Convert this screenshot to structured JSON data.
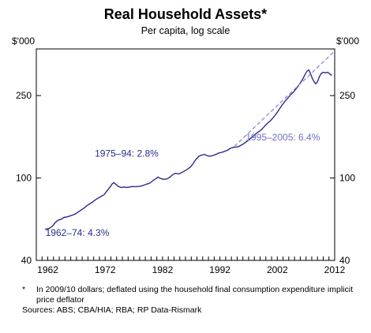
{
  "chart_data": {
    "type": "line",
    "title": "Real Household Assets*",
    "subtitle": "Per capita, log scale",
    "y_unit_left": "$'000",
    "y_unit_right": "$'000",
    "y_scale": "log",
    "ylim": [
      40,
      420
    ],
    "yticks": [
      40,
      100,
      250
    ],
    "ytick_labels": [
      "40",
      "100",
      "250"
    ],
    "xlim": [
      1960,
      2012
    ],
    "xticks": [
      1962,
      1972,
      1982,
      1992,
      2002,
      2012
    ],
    "xtick_labels": [
      "1962",
      "1972",
      "1982",
      "1992",
      "2002",
      "2012"
    ],
    "grid": false,
    "series": [
      {
        "color": "#2b2b8c",
        "style": "solid",
        "points": [
          [
            1961.5,
            56.5
          ],
          [
            1962.2,
            57
          ],
          [
            1962.8,
            58.5
          ],
          [
            1963.3,
            61
          ],
          [
            1963.8,
            62.5
          ],
          [
            1964.3,
            63.2
          ],
          [
            1964.8,
            64.5
          ],
          [
            1965.3,
            64.8
          ],
          [
            1965.8,
            65.5
          ],
          [
            1966.3,
            66.2
          ],
          [
            1966.8,
            67
          ],
          [
            1967.3,
            68.5
          ],
          [
            1967.8,
            70
          ],
          [
            1968.3,
            71.5
          ],
          [
            1968.8,
            73.5
          ],
          [
            1969.3,
            75
          ],
          [
            1969.8,
            76.5
          ],
          [
            1970.3,
            78.5
          ],
          [
            1970.8,
            80
          ],
          [
            1971.3,
            81.5
          ],
          [
            1971.8,
            83
          ],
          [
            1972.3,
            86.5
          ],
          [
            1972.8,
            90
          ],
          [
            1973.2,
            93.5
          ],
          [
            1973.5,
            95
          ],
          [
            1973.8,
            93.5
          ],
          [
            1974.3,
            91
          ],
          [
            1974.8,
            90
          ],
          [
            1975.3,
            90.5
          ],
          [
            1975.8,
            90
          ],
          [
            1976.3,
            90.5
          ],
          [
            1976.8,
            91
          ],
          [
            1977.3,
            90.8
          ],
          [
            1977.8,
            91
          ],
          [
            1978.3,
            91.5
          ],
          [
            1978.8,
            92.5
          ],
          [
            1979.3,
            93.5
          ],
          [
            1979.8,
            94.5
          ],
          [
            1980.3,
            97
          ],
          [
            1980.8,
            99
          ],
          [
            1981.2,
            101
          ],
          [
            1981.6,
            99.5
          ],
          [
            1982.2,
            98.5
          ],
          [
            1982.8,
            99
          ],
          [
            1983.3,
            101
          ],
          [
            1983.8,
            104
          ],
          [
            1984.3,
            105.5
          ],
          [
            1984.8,
            104.5
          ],
          [
            1985.3,
            106
          ],
          [
            1985.8,
            108
          ],
          [
            1986.3,
            110
          ],
          [
            1986.8,
            112.5
          ],
          [
            1987.3,
            117
          ],
          [
            1987.8,
            123
          ],
          [
            1988.3,
            127
          ],
          [
            1988.8,
            129
          ],
          [
            1989.3,
            130
          ],
          [
            1989.8,
            128
          ],
          [
            1990.3,
            127.5
          ],
          [
            1990.8,
            128.5
          ],
          [
            1991.3,
            130
          ],
          [
            1991.8,
            132
          ],
          [
            1992.3,
            133
          ],
          [
            1992.8,
            134.5
          ],
          [
            1993.3,
            136
          ],
          [
            1993.8,
            139
          ],
          [
            1994.3,
            140.5
          ],
          [
            1994.8,
            141
          ],
          [
            1995.3,
            142
          ],
          [
            1995.8,
            144.5
          ],
          [
            1996.3,
            147.5
          ],
          [
            1996.8,
            151
          ],
          [
            1997.3,
            155
          ],
          [
            1997.8,
            159
          ],
          [
            1998.3,
            164
          ],
          [
            1998.8,
            167.5
          ],
          [
            1999.3,
            172
          ],
          [
            1999.8,
            178
          ],
          [
            2000.3,
            184
          ],
          [
            2000.8,
            189
          ],
          [
            2001.3,
            196
          ],
          [
            2001.8,
            204
          ],
          [
            2002.3,
            214
          ],
          [
            2002.8,
            224
          ],
          [
            2003.3,
            234
          ],
          [
            2003.8,
            243
          ],
          [
            2004.3,
            252
          ],
          [
            2004.8,
            260
          ],
          [
            2005.3,
            270
          ],
          [
            2005.8,
            282
          ],
          [
            2006.3,
            296
          ],
          [
            2006.8,
            315
          ],
          [
            2007.2,
            329
          ],
          [
            2007.5,
            332
          ],
          [
            2007.8,
            318
          ],
          [
            2008.1,
            303
          ],
          [
            2008.4,
            292
          ],
          [
            2008.7,
            285
          ],
          [
            2009.0,
            291
          ],
          [
            2009.3,
            307
          ],
          [
            2009.6,
            319
          ],
          [
            2010.0,
            324
          ],
          [
            2010.4,
            322
          ],
          [
            2010.8,
            324
          ],
          [
            2011.2,
            317
          ],
          [
            2011.5,
            313
          ]
        ]
      },
      {
        "color": "#8a8ad8",
        "style": "dashed",
        "points": [
          [
            1994.5,
            142
          ],
          [
            2012,
            410
          ]
        ]
      }
    ],
    "annotations": [
      {
        "text": "1962–74: 4.3%",
        "x": 1961.6,
        "y": 52.5,
        "color": "#2b2b8c",
        "anchor": "start"
      },
      {
        "text": "1975–94: 2.8%",
        "x": 1981.3,
        "y": 127,
        "color": "#2b2b8c",
        "anchor": "end"
      },
      {
        "text": "1995–2005: 6.4%",
        "x": 1996.5,
        "y": 152,
        "color": "#7070c8",
        "anchor": "start"
      }
    ]
  },
  "footnote": {
    "star": "*",
    "note": "In 2009/10 dollars; deflated using the household final consumption expenditure implicit price deflator",
    "sources": "Sources: ABS; CBA/HIA; RBA; RP Data-Rismark"
  }
}
